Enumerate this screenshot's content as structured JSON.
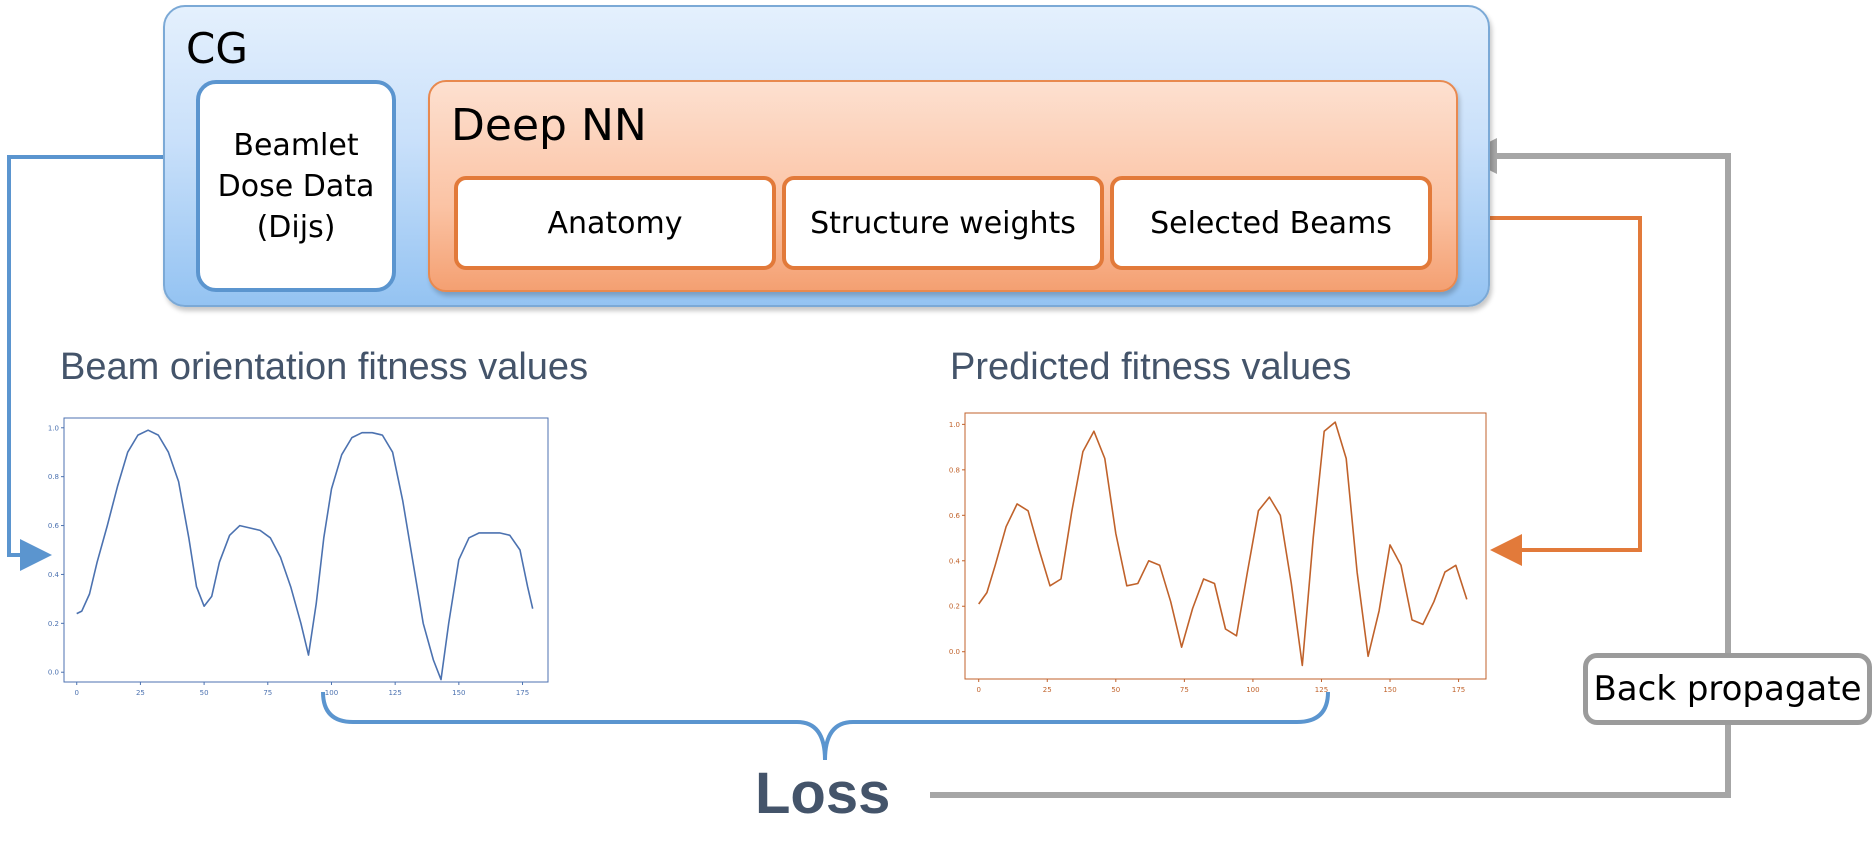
{
  "diagram": {
    "cg_label": "CG",
    "beamlet_label": "Beamlet\nDose Data\n(Dijs)",
    "deep_nn_label": "Deep NN",
    "nn_items": [
      "Anatomy",
      "Structure weights",
      "Selected Beams"
    ],
    "left_chart_title": "Beam orientation fitness values",
    "right_chart_title": "Predicted fitness values",
    "loss_label": "Loss",
    "back_propagate_label": "Back propagate",
    "colors": {
      "blue": "#5b95cf",
      "orange": "#e27a3a",
      "gray": "#a6a6a6",
      "title": "#44546a"
    }
  },
  "chart_data": [
    {
      "type": "line",
      "title": "Beam orientation fitness values",
      "xlim": [
        -5,
        185
      ],
      "ylim": [
        -0.04,
        1.04
      ],
      "x_ticks": [
        "0",
        "25",
        "50",
        "75",
        "100",
        "125",
        "150",
        "175"
      ],
      "y_ticks": [
        "0.0",
        "0.2",
        "0.4",
        "0.6",
        "0.8",
        "1.0"
      ],
      "color": "#4c72b0",
      "x": [
        0,
        2,
        5,
        8,
        12,
        16,
        20,
        24,
        28,
        32,
        36,
        40,
        44,
        47,
        50,
        53,
        56,
        60,
        64,
        68,
        72,
        76,
        80,
        84,
        88,
        91,
        94,
        97,
        100,
        104,
        108,
        112,
        116,
        120,
        124,
        128,
        132,
        136,
        140,
        143,
        146,
        150,
        154,
        158,
        162,
        166,
        170,
        174,
        177,
        179
      ],
      "y": [
        0.24,
        0.25,
        0.32,
        0.45,
        0.6,
        0.76,
        0.9,
        0.97,
        0.99,
        0.97,
        0.9,
        0.78,
        0.55,
        0.35,
        0.27,
        0.31,
        0.45,
        0.56,
        0.6,
        0.59,
        0.58,
        0.55,
        0.47,
        0.35,
        0.2,
        0.07,
        0.28,
        0.55,
        0.75,
        0.89,
        0.96,
        0.98,
        0.98,
        0.97,
        0.9,
        0.7,
        0.45,
        0.2,
        0.05,
        -0.03,
        0.2,
        0.46,
        0.55,
        0.57,
        0.57,
        0.57,
        0.56,
        0.5,
        0.35,
        0.26
      ]
    },
    {
      "type": "line",
      "title": "Predicted fitness values",
      "xlim": [
        -5,
        185
      ],
      "ylim": [
        -0.12,
        1.05
      ],
      "x_ticks": [
        "0",
        "25",
        "50",
        "75",
        "100",
        "125",
        "150",
        "175"
      ],
      "y_ticks": [
        "0.0",
        "0.2",
        "0.4",
        "0.6",
        "0.8",
        "1.0"
      ],
      "color": "#c0622b",
      "x": [
        0,
        3,
        6,
        10,
        14,
        18,
        22,
        26,
        30,
        34,
        38,
        42,
        46,
        50,
        54,
        58,
        62,
        66,
        70,
        74,
        78,
        82,
        86,
        90,
        94,
        98,
        102,
        106,
        110,
        114,
        118,
        122,
        126,
        130,
        134,
        138,
        142,
        146,
        150,
        154,
        158,
        162,
        166,
        170,
        174,
        178
      ],
      "y": [
        0.21,
        0.26,
        0.38,
        0.55,
        0.65,
        0.62,
        0.45,
        0.29,
        0.32,
        0.62,
        0.88,
        0.97,
        0.85,
        0.52,
        0.29,
        0.3,
        0.4,
        0.38,
        0.22,
        0.02,
        0.19,
        0.32,
        0.3,
        0.1,
        0.07,
        0.35,
        0.62,
        0.68,
        0.6,
        0.3,
        -0.06,
        0.5,
        0.97,
        1.01,
        0.85,
        0.35,
        -0.02,
        0.18,
        0.47,
        0.38,
        0.14,
        0.12,
        0.22,
        0.35,
        0.38,
        0.23
      ]
    }
  ]
}
